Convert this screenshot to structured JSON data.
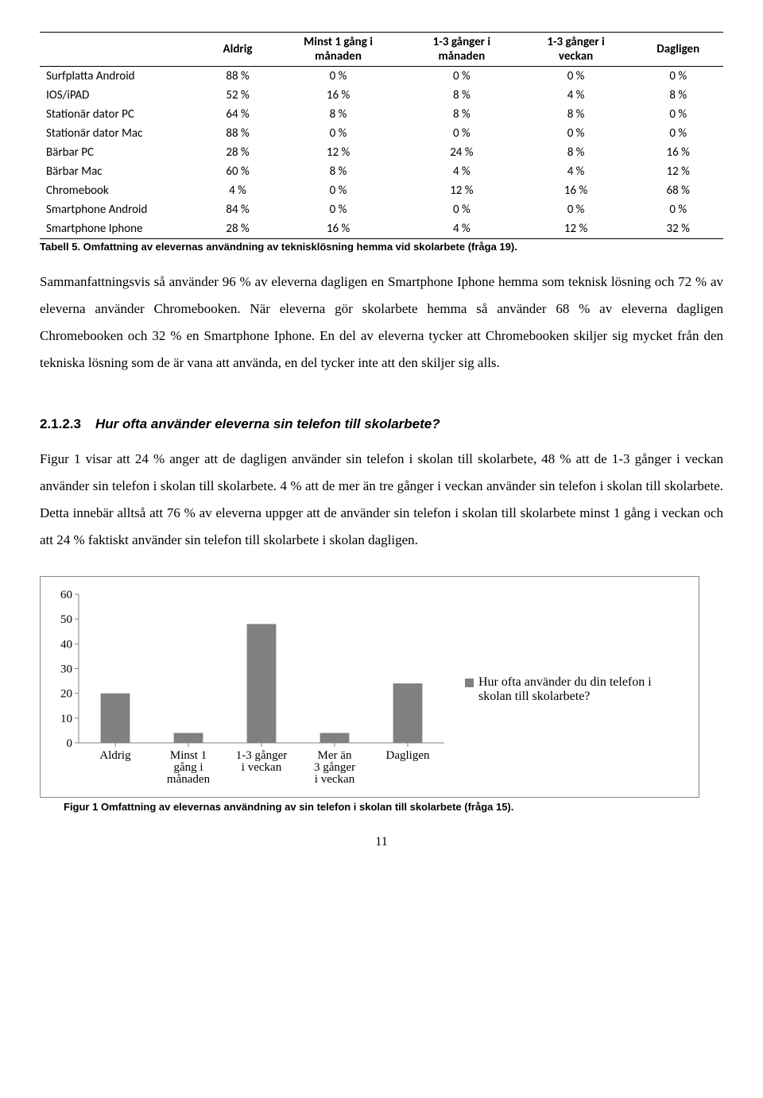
{
  "table": {
    "columns": [
      "",
      "Aldrig",
      "Minst 1 gång i månaden",
      "1-3 gånger i månaden",
      "1-3 gånger i veckan",
      "Dagligen"
    ],
    "rows": [
      [
        "Surfplatta Android",
        "88 %",
        "0 %",
        "0 %",
        "0 %",
        "0 %"
      ],
      [
        "IOS/iPAD",
        "52 %",
        "16 %",
        "8 %",
        "4 %",
        "8 %"
      ],
      [
        "Stationär dator PC",
        "64 %",
        "8 %",
        "8 %",
        "8 %",
        "0 %"
      ],
      [
        "Stationär dator Mac",
        "88 %",
        "0 %",
        "0 %",
        "0 %",
        "0 %"
      ],
      [
        "Bärbar PC",
        "28 %",
        "12 %",
        "24 %",
        "8 %",
        "16 %"
      ],
      [
        "Bärbar Mac",
        "60 %",
        "8 %",
        "4 %",
        "4 %",
        "12 %"
      ],
      [
        "Chromebook",
        "4 %",
        "0 %",
        "12 %",
        "16 %",
        "68 %"
      ],
      [
        "Smartphone Android",
        "84 %",
        "0 %",
        "0 %",
        "0 %",
        "0 %"
      ],
      [
        "Smartphone Iphone",
        "28 %",
        "16 %",
        "4 %",
        "12 %",
        "32 %"
      ]
    ],
    "caption": "Tabell 5. Omfattning av elevernas användning av teknisklösning hemma vid skolarbete (fråga 19)."
  },
  "paragraph1": "Sammanfattningsvis så använder 96 % av eleverna dagligen en Smartphone Iphone hemma som teknisk lösning och 72 % av eleverna använder Chromebooken. När eleverna gör skolarbete hemma så använder 68 % av eleverna dagligen Chromebooken och 32 % en Smartphone Iphone. En del av eleverna tycker att Chromebooken skiljer sig mycket från den tekniska lösning som de är vana att använda, en del tycker inte att den skiljer sig alls.",
  "section": {
    "number": "2.1.2.3",
    "title": "Hur ofta använder eleverna sin telefon till skolarbete?"
  },
  "paragraph2": "Figur 1 visar att 24 % anger att de dagligen använder sin telefon i skolan till skolarbete, 48 % att de 1-3 gånger i veckan använder sin telefon i skolan till skolarbete. 4 % att de mer än tre gånger i veckan använder sin telefon i skolan till skolarbete. Detta innebär alltså att 76 % av eleverna uppger att de använder sin telefon i skolan till skolarbete minst 1 gång i veckan och att 24 % faktiskt använder sin telefon till skolarbete i skolan dagligen.",
  "chart": {
    "type": "bar",
    "categories": [
      "Aldrig",
      "Minst 1 gång i månaden",
      "1-3 gånger i veckan",
      "Mer än 3 gånger i veckan",
      "Dagligen"
    ],
    "values": [
      20,
      4,
      48,
      4,
      24
    ],
    "ylim": [
      0,
      60
    ],
    "ytick_step": 10,
    "yticks": [
      0,
      10,
      20,
      30,
      40,
      50,
      60
    ],
    "bar_color": "#808080",
    "tick_color": "#808080",
    "axis_color": "#808080",
    "bar_width_ratio": 0.4,
    "background_color": "#ffffff",
    "legend_label": "Hur ofta använder du din telefon i skolan till skolarbete?",
    "caption": "Figur 1 Omfattning av elevernas användning av sin telefon i skolan till skolarbete (fråga 15).",
    "label_fontsize": 15
  },
  "page_number": "11"
}
